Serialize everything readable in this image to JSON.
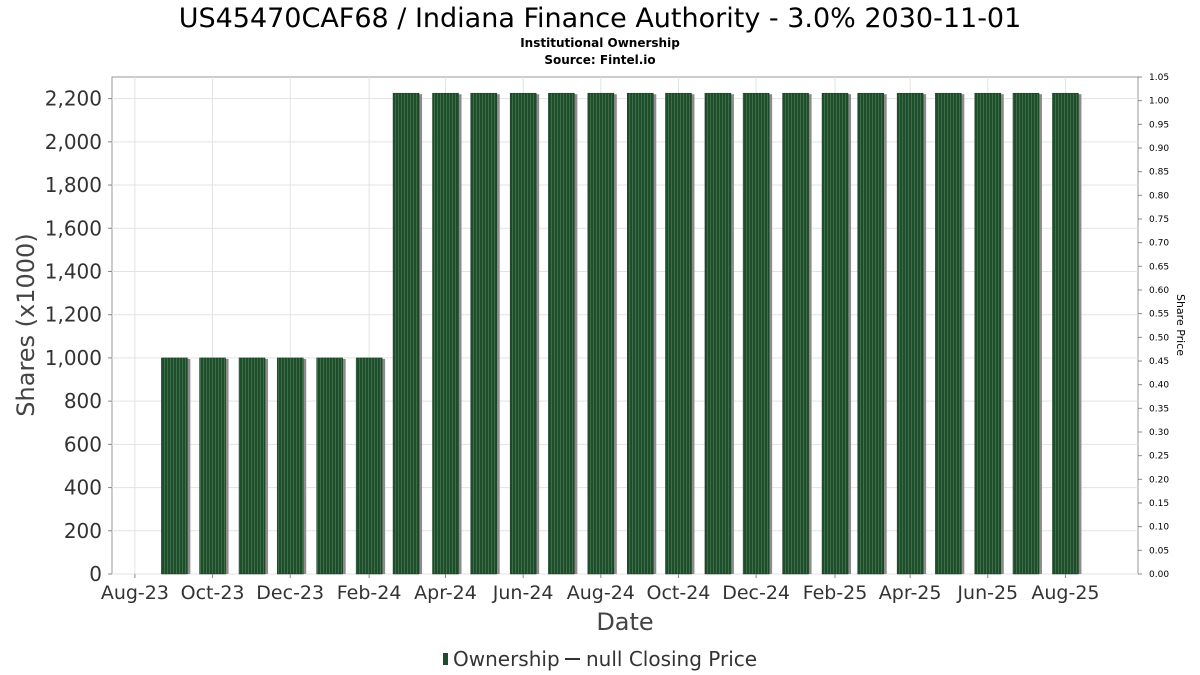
{
  "chart_data": {
    "type": "bar",
    "title": "US45470CAF68 / Indiana Finance Authority - 3.0% 2030-11-01",
    "subtitle_lines": [
      "Institutional Ownership",
      "Source: Fintel.io"
    ],
    "xlabel": "Date",
    "ylabel": "Shares (x1000)",
    "y2label": "Share Price",
    "ylim": [
      0,
      2300
    ],
    "y2lim": [
      0.0,
      1.05
    ],
    "yticks": [
      0,
      200,
      400,
      600,
      800,
      1000,
      1200,
      1400,
      1600,
      1800,
      2000,
      2200
    ],
    "ytick_labels": [
      "0",
      "200",
      "400",
      "600",
      "800",
      "1,000",
      "1,200",
      "1,400",
      "1,600",
      "1,800",
      "2,000",
      "2,200"
    ],
    "y2ticks": [
      0.0,
      0.05,
      0.1,
      0.15,
      0.2,
      0.25,
      0.3,
      0.35,
      0.4,
      0.45,
      0.5,
      0.55,
      0.6,
      0.65,
      0.7,
      0.75,
      0.8,
      0.85,
      0.9,
      0.95,
      1.0,
      1.05
    ],
    "y2tick_labels": [
      "0.00",
      "0.05",
      "0.10",
      "0.15",
      "0.20",
      "0.25",
      "0.30",
      "0.35",
      "0.40",
      "0.45",
      "0.50",
      "0.55",
      "0.60",
      "0.65",
      "0.70",
      "0.75",
      "0.80",
      "0.85",
      "0.90",
      "0.95",
      "1.00",
      "1.05"
    ],
    "xlim": [
      "2023-07-14",
      "2025-09-27"
    ],
    "xticks": [
      "2023-08-01",
      "2023-10-01",
      "2023-12-01",
      "2024-02-01",
      "2024-04-01",
      "2024-06-01",
      "2024-08-01",
      "2024-10-01",
      "2024-12-01",
      "2025-02-01",
      "2025-04-01",
      "2025-06-01",
      "2025-08-01"
    ],
    "xtick_labels": [
      "Aug-23",
      "Oct-23",
      "Dec-23",
      "Feb-24",
      "Apr-24",
      "Jun-24",
      "Aug-24",
      "Oct-24",
      "Dec-24",
      "Feb-25",
      "Apr-25",
      "Jun-25",
      "Aug-25"
    ],
    "x": [
      "2023-09-01",
      "2023-10-01",
      "2023-11-01",
      "2023-12-01",
      "2024-01-01",
      "2024-02-01",
      "2024-03-01",
      "2024-04-01",
      "2024-05-01",
      "2024-06-01",
      "2024-07-01",
      "2024-08-01",
      "2024-09-01",
      "2024-10-01",
      "2024-11-01",
      "2024-12-01",
      "2025-01-01",
      "2025-02-01",
      "2025-03-01",
      "2025-04-01",
      "2025-05-01",
      "2025-06-01",
      "2025-07-01",
      "2025-08-01"
    ],
    "series": [
      {
        "name": "Ownership",
        "values": [
          1000,
          1000,
          1000,
          1000,
          1000,
          1000,
          2225,
          2225,
          2225,
          2225,
          2225,
          2225,
          2225,
          2225,
          2225,
          2225,
          2225,
          2225,
          2225,
          2225,
          2225,
          2225,
          2225,
          2225
        ],
        "color": "#1e4d2b"
      }
    ],
    "legend": [
      "Ownership",
      "null Closing Price"
    ],
    "legend_position": "bottom",
    "grid": true
  }
}
